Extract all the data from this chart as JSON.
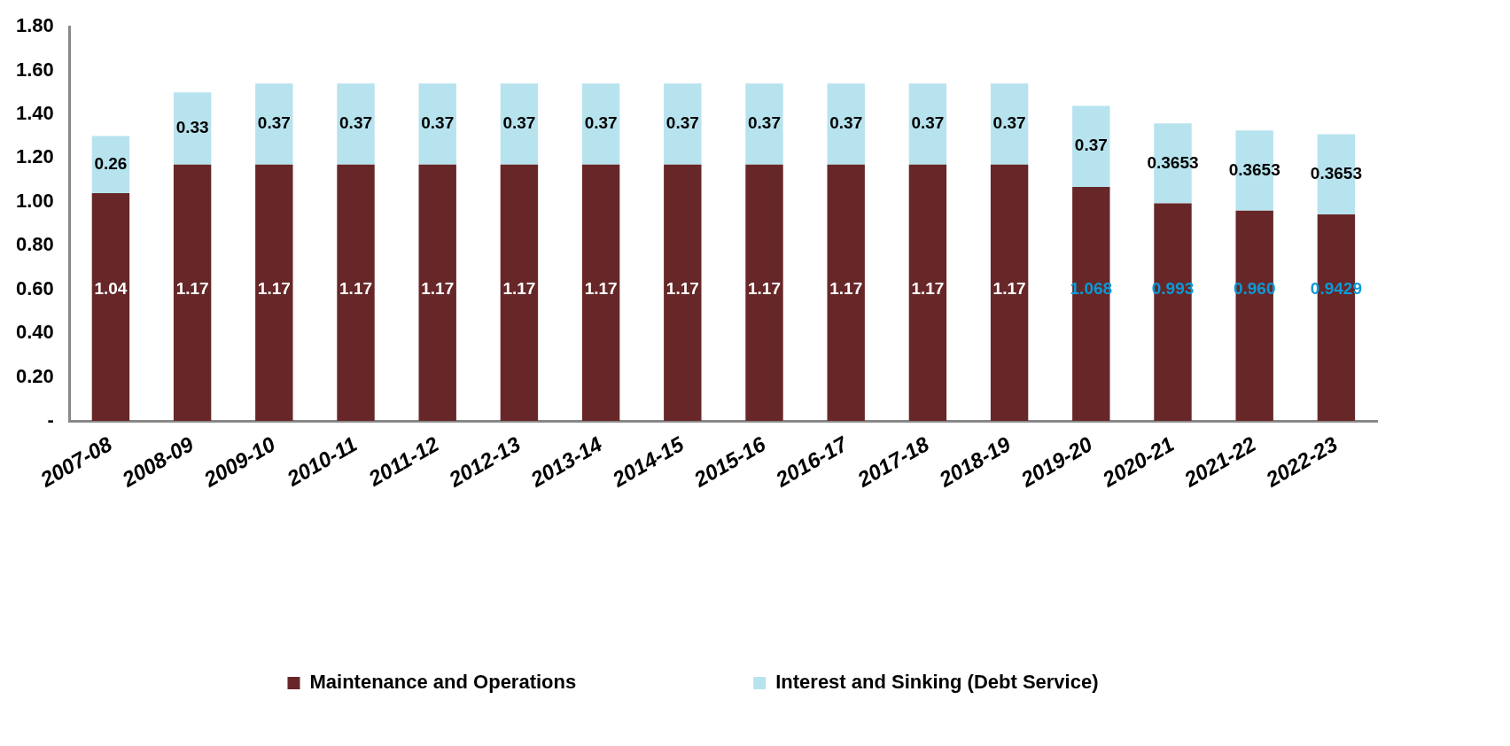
{
  "chart_data": {
    "type": "bar",
    "stacked": true,
    "categories": [
      "2007-08",
      "2008-09",
      "2009-10",
      "2010-11",
      "2011-12",
      "2012-13",
      "2013-14",
      "2014-15",
      "2015-16",
      "2016-17",
      "2017-18",
      "2018-19",
      "2019-20",
      "2020-21",
      "2021-22",
      "2022-23"
    ],
    "series": [
      {
        "name": "Maintenance and Operations",
        "color": "#672728",
        "values": [
          1.04,
          1.17,
          1.17,
          1.17,
          1.17,
          1.17,
          1.17,
          1.17,
          1.17,
          1.17,
          1.17,
          1.17,
          1.068,
          0.993,
          0.96,
          0.9429
        ],
        "value_labels": [
          "1.04",
          "1.17",
          "1.17",
          "1.17",
          "1.17",
          "1.17",
          "1.17",
          "1.17",
          "1.17",
          "1.17",
          "1.17",
          "1.17",
          "1.068",
          "0.993",
          "0.960",
          "0.9429"
        ]
      },
      {
        "name": "Interest and Sinking (Debt Service)",
        "color": "#b7e3ee",
        "values": [
          0.26,
          0.33,
          0.37,
          0.37,
          0.37,
          0.37,
          0.37,
          0.37,
          0.37,
          0.37,
          0.37,
          0.37,
          0.37,
          0.3653,
          0.3653,
          0.3653
        ],
        "value_labels": [
          "0.26",
          "0.33",
          "0.37",
          "0.37",
          "0.37",
          "0.37",
          "0.37",
          "0.37",
          "0.37",
          "0.37",
          "0.37",
          "0.37",
          "0.37",
          "0.3653",
          "0.3653",
          "0.3653"
        ]
      }
    ],
    "ylim": [
      0,
      1.8
    ],
    "yticks": [
      {
        "value": 0,
        "label": "-"
      },
      {
        "value": 0.2,
        "label": "0.20"
      },
      {
        "value": 0.4,
        "label": "0.40"
      },
      {
        "value": 0.6,
        "label": "0.60"
      },
      {
        "value": 0.8,
        "label": "0.80"
      },
      {
        "value": 1,
        "label": "1.00"
      },
      {
        "value": 1.2,
        "label": "1.20"
      },
      {
        "value": 1.4,
        "label": "1.40"
      },
      {
        "value": 1.6,
        "label": "1.60"
      },
      {
        "value": 1.8,
        "label": "1.80"
      }
    ],
    "grid": false,
    "legend": "bottom"
  }
}
